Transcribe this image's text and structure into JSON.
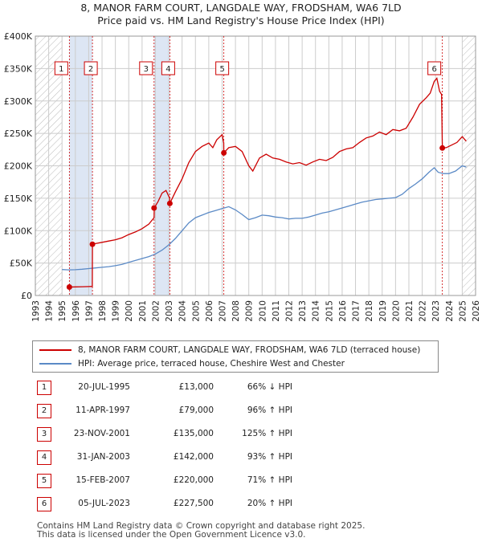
{
  "title_line1": "8, MANOR FARM COURT, LANGDALE WAY, FRODSHAM, WA6 7LD",
  "title_line2": "Price paid vs. HM Land Registry's House Price Index (HPI)",
  "colors": {
    "price": "#cc0000",
    "hpi": "#5b8ac6",
    "shade": "#dde6f4",
    "grid": "#cccccc",
    "hatch": "#bbbbbb"
  },
  "chart_data": {
    "type": "line",
    "title": "8, MANOR FARM COURT, LANGDALE WAY, FRODSHAM, WA6 7LD",
    "subtitle": "Price paid vs. HM Land Registry's House Price Index (HPI)",
    "xlim": [
      1993,
      2026
    ],
    "ylim": [
      0,
      400000
    ],
    "x_ticks": [
      "1993",
      "1994",
      "1995",
      "1996",
      "1997",
      "1998",
      "1999",
      "2000",
      "2001",
      "2002",
      "2003",
      "2004",
      "2005",
      "2006",
      "2007",
      "2008",
      "2009",
      "2010",
      "2011",
      "2012",
      "2013",
      "2014",
      "2015",
      "2016",
      "2017",
      "2018",
      "2019",
      "2020",
      "2021",
      "2022",
      "2023",
      "2024",
      "2025",
      "2026"
    ],
    "y_ticks": [
      {
        "value": 0,
        "label": "£0"
      },
      {
        "value": 50000,
        "label": "£50K"
      },
      {
        "value": 100000,
        "label": "£100K"
      },
      {
        "value": 150000,
        "label": "£150K"
      },
      {
        "value": 200000,
        "label": "£200K"
      },
      {
        "value": 250000,
        "label": "£250K"
      },
      {
        "value": 300000,
        "label": "£300K"
      },
      {
        "value": 350000,
        "label": "£350K"
      },
      {
        "value": 400000,
        "label": "£400K"
      }
    ],
    "hatched_ranges": [
      [
        1993,
        1995
      ],
      [
        2025,
        2026
      ]
    ],
    "shaded_ranges": [
      [
        1995.55,
        1997.28
      ],
      [
        2001.9,
        2003.08
      ]
    ],
    "legend_position": "below",
    "series": [
      {
        "name": "8, MANOR FARM COURT, LANGDALE WAY, FRODSHAM, WA6 7LD (terraced house)",
        "color": "#cc0000",
        "points": [
          [
            1995.55,
            13000
          ],
          [
            1996.0,
            13200
          ],
          [
            1996.5,
            13500
          ],
          [
            1997.0,
            13700
          ],
          [
            1997.27,
            14000
          ],
          [
            1997.28,
            79000
          ],
          [
            1997.5,
            80000
          ],
          [
            1998,
            82000
          ],
          [
            1998.5,
            84000
          ],
          [
            1999,
            86000
          ],
          [
            1999.5,
            89000
          ],
          [
            2000,
            94000
          ],
          [
            2000.5,
            98000
          ],
          [
            2001,
            103000
          ],
          [
            2001.5,
            110000
          ],
          [
            2001.9,
            120000
          ],
          [
            2001.91,
            135000
          ],
          [
            2002.2,
            145000
          ],
          [
            2002.5,
            158000
          ],
          [
            2002.8,
            162000
          ],
          [
            2003.07,
            150000
          ],
          [
            2003.08,
            142000
          ],
          [
            2003.5,
            160000
          ],
          [
            2004,
            180000
          ],
          [
            2004.5,
            205000
          ],
          [
            2005,
            222000
          ],
          [
            2005.5,
            230000
          ],
          [
            2006,
            235000
          ],
          [
            2006.3,
            228000
          ],
          [
            2006.6,
            240000
          ],
          [
            2007.0,
            248000
          ],
          [
            2007.12,
            235000
          ],
          [
            2007.13,
            220000
          ],
          [
            2007.5,
            228000
          ],
          [
            2008,
            230000
          ],
          [
            2008.5,
            222000
          ],
          [
            2009,
            200000
          ],
          [
            2009.3,
            192000
          ],
          [
            2009.8,
            212000
          ],
          [
            2010.3,
            218000
          ],
          [
            2010.8,
            212000
          ],
          [
            2011.3,
            210000
          ],
          [
            2011.8,
            206000
          ],
          [
            2012.3,
            203000
          ],
          [
            2012.8,
            205000
          ],
          [
            2013.3,
            201000
          ],
          [
            2013.8,
            206000
          ],
          [
            2014.3,
            210000
          ],
          [
            2014.8,
            208000
          ],
          [
            2015.3,
            213000
          ],
          [
            2015.8,
            222000
          ],
          [
            2016.3,
            226000
          ],
          [
            2016.8,
            228000
          ],
          [
            2017.3,
            236000
          ],
          [
            2017.8,
            243000
          ],
          [
            2018.3,
            246000
          ],
          [
            2018.8,
            252000
          ],
          [
            2019.3,
            248000
          ],
          [
            2019.8,
            256000
          ],
          [
            2020.3,
            254000
          ],
          [
            2020.8,
            258000
          ],
          [
            2021.3,
            275000
          ],
          [
            2021.8,
            295000
          ],
          [
            2022.3,
            305000
          ],
          [
            2022.6,
            312000
          ],
          [
            2022.9,
            330000
          ],
          [
            2023.1,
            335000
          ],
          [
            2023.3,
            315000
          ],
          [
            2023.45,
            310000
          ],
          [
            2023.5,
            238000
          ],
          [
            2023.51,
            227500
          ],
          [
            2023.8,
            228000
          ],
          [
            2024.2,
            232000
          ],
          [
            2024.6,
            236000
          ],
          [
            2025.0,
            245000
          ],
          [
            2025.3,
            238000
          ]
        ]
      },
      {
        "name": "HPI: Average price, terraced house, Cheshire West and Chester",
        "color": "#5b8ac6",
        "points": [
          [
            1995.0,
            40000
          ],
          [
            1995.5,
            39500
          ],
          [
            1996,
            39800
          ],
          [
            1996.5,
            40500
          ],
          [
            1997,
            41500
          ],
          [
            1997.5,
            42500
          ],
          [
            1998,
            43500
          ],
          [
            1998.5,
            44500
          ],
          [
            1999,
            46000
          ],
          [
            1999.5,
            48000
          ],
          [
            2000,
            51000
          ],
          [
            2000.5,
            54000
          ],
          [
            2001,
            57000
          ],
          [
            2001.5,
            60000
          ],
          [
            2002,
            64000
          ],
          [
            2002.5,
            70000
          ],
          [
            2003,
            78000
          ],
          [
            2003.5,
            88000
          ],
          [
            2004,
            100000
          ],
          [
            2004.5,
            112000
          ],
          [
            2005,
            120000
          ],
          [
            2005.5,
            124000
          ],
          [
            2006,
            128000
          ],
          [
            2006.5,
            131000
          ],
          [
            2007,
            134000
          ],
          [
            2007.5,
            137000
          ],
          [
            2008,
            132000
          ],
          [
            2008.5,
            125000
          ],
          [
            2009,
            117000
          ],
          [
            2009.5,
            120000
          ],
          [
            2010,
            124000
          ],
          [
            2010.5,
            123000
          ],
          [
            2011,
            121000
          ],
          [
            2011.5,
            120000
          ],
          [
            2012,
            118000
          ],
          [
            2012.5,
            119000
          ],
          [
            2013,
            119000
          ],
          [
            2013.5,
            121000
          ],
          [
            2014,
            124000
          ],
          [
            2014.5,
            127000
          ],
          [
            2015,
            129000
          ],
          [
            2015.5,
            132000
          ],
          [
            2016,
            135000
          ],
          [
            2016.5,
            138000
          ],
          [
            2017,
            141000
          ],
          [
            2017.5,
            144000
          ],
          [
            2018,
            146000
          ],
          [
            2018.5,
            148000
          ],
          [
            2019,
            149000
          ],
          [
            2019.5,
            150000
          ],
          [
            2020,
            151000
          ],
          [
            2020.5,
            156000
          ],
          [
            2021,
            165000
          ],
          [
            2021.5,
            172000
          ],
          [
            2022,
            180000
          ],
          [
            2022.5,
            190000
          ],
          [
            2022.9,
            197000
          ],
          [
            2023.2,
            190000
          ],
          [
            2023.6,
            188000
          ],
          [
            2024,
            188000
          ],
          [
            2024.5,
            192000
          ],
          [
            2025,
            200000
          ],
          [
            2025.3,
            198000
          ]
        ]
      }
    ],
    "transactions": [
      {
        "label": "1",
        "x": 1995.55,
        "y": 13000,
        "date": "20-JUL-1995",
        "price": "£13,000",
        "hpi": "66% ↓ HPI"
      },
      {
        "label": "2",
        "x": 1997.28,
        "y": 79000,
        "date": "11-APR-1997",
        "price": "£79,000",
        "hpi": "96% ↑ HPI"
      },
      {
        "label": "3",
        "x": 2001.9,
        "y": 135000,
        "date": "23-NOV-2001",
        "price": "£135,000",
        "hpi": "125% ↑ HPI"
      },
      {
        "label": "4",
        "x": 2003.08,
        "y": 142000,
        "date": "31-JAN-2003",
        "price": "£142,000",
        "hpi": "93% ↑ HPI"
      },
      {
        "label": "5",
        "x": 2007.13,
        "y": 220000,
        "date": "15-FEB-2007",
        "price": "£220,000",
        "hpi": "71% ↑ HPI"
      },
      {
        "label": "6",
        "x": 2023.51,
        "y": 227500,
        "date": "05-JUL-2023",
        "price": "£227,500",
        "hpi": "20% ↑ HPI"
      }
    ]
  },
  "legend": {
    "price_label": "8, MANOR FARM COURT, LANGDALE WAY, FRODSHAM, WA6 7LD (terraced house)",
    "hpi_label": "HPI: Average price, terraced house, Cheshire West and Chester"
  },
  "footer": {
    "line1": "Contains HM Land Registry data © Crown copyright and database right 2025.",
    "line2": "This data is licensed under the Open Government Licence v3.0."
  }
}
